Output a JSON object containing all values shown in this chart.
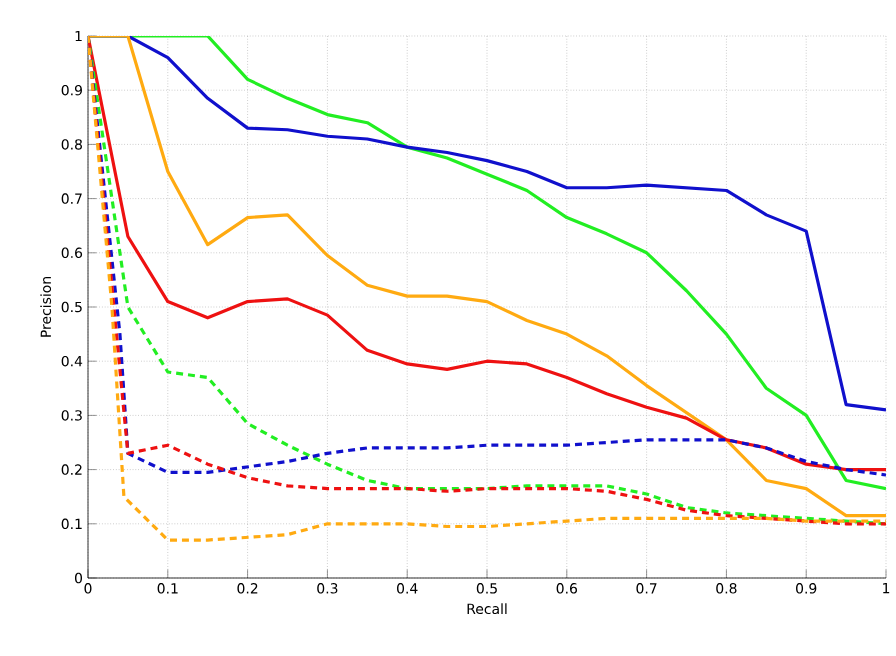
{
  "chart_data": {
    "type": "line",
    "xlabel": "Recall",
    "ylabel": "Precision",
    "xlim": [
      0,
      1
    ],
    "ylim": [
      0,
      1
    ],
    "xticks": [
      0,
      0.1,
      0.2,
      0.3,
      0.4,
      0.5,
      0.6,
      0.7,
      0.8,
      0.9,
      1
    ],
    "yticks": [
      0,
      0.1,
      0.2,
      0.3,
      0.4,
      0.5,
      0.6,
      0.7,
      0.8,
      0.9,
      1
    ],
    "grid": true,
    "marker": "none",
    "x": [
      0,
      0.05,
      0.1,
      0.15,
      0.2,
      0.25,
      0.3,
      0.35,
      0.4,
      0.45,
      0.5,
      0.55,
      0.6,
      0.65,
      0.7,
      0.75,
      0.8,
      0.85,
      0.9,
      0.95,
      1
    ],
    "series": [
      {
        "color": "#22ee22",
        "line_style": "solid",
        "values": [
          1,
          1,
          1,
          1,
          0.92,
          0.885,
          0.855,
          0.84,
          0.795,
          0.775,
          0.745,
          0.715,
          0.665,
          0.635,
          0.6,
          0.53,
          0.45,
          0.35,
          0.3,
          0.18,
          0.165
        ]
      },
      {
        "color": "#1010cc",
        "line_style": "solid",
        "values": [
          1,
          1,
          0.96,
          0.885,
          0.83,
          0.827,
          0.815,
          0.81,
          0.795,
          0.785,
          0.77,
          0.75,
          0.72,
          0.72,
          0.725,
          0.72,
          0.715,
          0.67,
          0.64,
          0.32,
          0.31
        ]
      },
      {
        "color": "#ffaa11",
        "line_style": "solid",
        "values": [
          1,
          1,
          0.75,
          0.615,
          0.665,
          0.67,
          0.595,
          0.54,
          0.52,
          0.52,
          0.51,
          0.475,
          0.45,
          0.41,
          0.355,
          0.305,
          0.255,
          0.18,
          0.165,
          0.115,
          0.115
        ]
      },
      {
        "color": "#ee1111",
        "line_style": "solid",
        "values": [
          1,
          0.63,
          0.51,
          0.48,
          0.51,
          0.515,
          0.485,
          0.42,
          0.395,
          0.385,
          0.4,
          0.395,
          0.37,
          0.34,
          0.315,
          0.295,
          0.255,
          0.24,
          0.21,
          0.2,
          0.2
        ]
      },
      {
        "color": "#22ee22",
        "line_style": "dashed",
        "values": [
          1,
          0.5,
          0.38,
          0.37,
          0.285,
          0.245,
          0.21,
          0.18,
          0.165,
          0.165,
          0.165,
          0.17,
          0.17,
          0.17,
          0.155,
          0.13,
          0.12,
          0.115,
          0.11,
          0.105,
          0.1
        ]
      },
      {
        "color": "#1010cc",
        "line_style": "dashed",
        "x": [
          0,
          0.04,
          0.05,
          0.1,
          0.15,
          0.2,
          0.25,
          0.3,
          0.35,
          0.4,
          0.45,
          0.5,
          0.55,
          0.6,
          0.65,
          0.7,
          0.75,
          0.8,
          0.85,
          0.9,
          0.95,
          1
        ],
        "values": [
          1,
          0.45,
          0.23,
          0.195,
          0.195,
          0.205,
          0.215,
          0.23,
          0.24,
          0.24,
          0.24,
          0.245,
          0.245,
          0.245,
          0.25,
          0.255,
          0.255,
          0.255,
          0.24,
          0.215,
          0.2,
          0.19
        ]
      },
      {
        "color": "#ee1111",
        "line_style": "dashed",
        "values": [
          1,
          0.23,
          0.245,
          0.21,
          0.185,
          0.17,
          0.165,
          0.165,
          0.165,
          0.16,
          0.165,
          0.165,
          0.165,
          0.16,
          0.145,
          0.125,
          0.115,
          0.11,
          0.105,
          0.1,
          0.1
        ]
      },
      {
        "color": "#ffaa11",
        "line_style": "dashed",
        "x": [
          0,
          0.03,
          0.045,
          0.1,
          0.15,
          0.2,
          0.25,
          0.3,
          0.35,
          0.4,
          0.45,
          0.5,
          0.55,
          0.6,
          0.65,
          0.7,
          0.75,
          0.8,
          0.85,
          0.9,
          0.95,
          1
        ],
        "values": [
          1,
          0.5,
          0.15,
          0.07,
          0.07,
          0.075,
          0.08,
          0.1,
          0.1,
          0.1,
          0.095,
          0.095,
          0.1,
          0.105,
          0.11,
          0.11,
          0.11,
          0.11,
          0.11,
          0.105,
          0.105,
          0.105
        ]
      }
    ]
  }
}
